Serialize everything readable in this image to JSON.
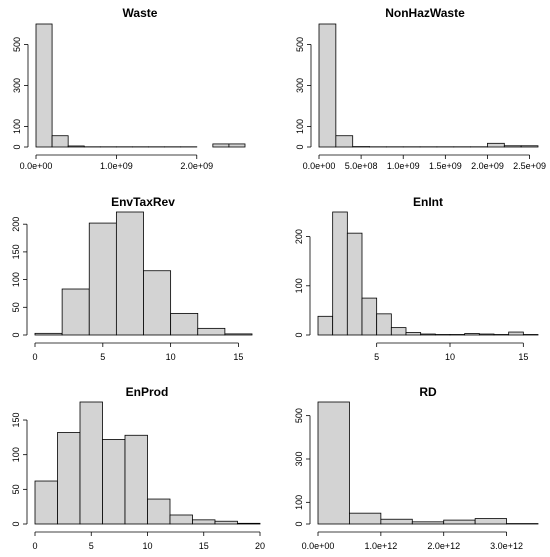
{
  "chart_data": [
    {
      "type": "bar",
      "title": "Waste",
      "bin_edges": [
        0,
        200000000,
        400000000,
        600000000,
        800000000,
        1000000000,
        1200000000,
        1400000000,
        1600000000,
        1800000000,
        2000000000,
        2200000000,
        2400000000,
        2600000000
      ],
      "counts": [
        600,
        55,
        5,
        1,
        1,
        1,
        1,
        1,
        1,
        1,
        0,
        15,
        15,
        2
      ],
      "xticks": [
        0,
        1000000000,
        2000000000
      ],
      "xtick_labels": [
        "0.0e+00",
        "1.0e+09",
        "2.0e+09"
      ],
      "yticks": [
        0,
        100,
        300,
        500
      ],
      "ytick_labels": [
        "0",
        "100",
        "300",
        "500"
      ],
      "ylim": [
        0,
        600
      ]
    },
    {
      "type": "bar",
      "title": "NonHazWaste",
      "bin_edges": [
        0,
        200000000,
        400000000,
        600000000,
        800000000,
        1000000000,
        1200000000,
        1400000000,
        1600000000,
        1800000000,
        2000000000,
        2200000000,
        2400000000,
        2600000000
      ],
      "counts": [
        600,
        55,
        2,
        1,
        1,
        1,
        1,
        1,
        1,
        1,
        18,
        6,
        6,
        1
      ],
      "xticks": [
        0,
        500000000,
        1000000000,
        1500000000,
        2000000000,
        2500000000
      ],
      "xtick_labels": [
        "0.0e+00",
        "5.0e+08",
        "1.0e+09",
        "1.5e+09",
        "2.0e+09",
        "2.5e+09"
      ],
      "yticks": [
        0,
        100,
        300,
        500
      ],
      "ytick_labels": [
        "0",
        "100",
        "300",
        "500"
      ],
      "ylim": [
        0,
        600
      ]
    },
    {
      "type": "bar",
      "title": "EnvTaxRev",
      "bin_edges": [
        0,
        2,
        4,
        6,
        8,
        10,
        12,
        14,
        16
      ],
      "counts": [
        3,
        83,
        202,
        222,
        116,
        39,
        12,
        2
      ],
      "xticks": [
        0,
        5,
        10,
        15
      ],
      "xtick_labels": [
        "0",
        "5",
        "10",
        "15"
      ],
      "yticks": [
        0,
        50,
        100,
        150,
        200
      ],
      "ytick_labels": [
        "0",
        "50",
        "100",
        "150",
        "200"
      ],
      "ylim": [
        0,
        222
      ]
    },
    {
      "type": "bar",
      "title": "EnInt",
      "bin_edges": [
        1,
        2,
        3,
        4,
        5,
        6,
        7,
        8,
        9,
        10,
        11,
        12,
        13,
        14,
        15,
        16
      ],
      "counts": [
        38,
        250,
        207,
        75,
        43,
        15,
        5,
        2,
        1,
        1,
        3,
        2,
        1,
        6,
        1
      ],
      "xticks": [
        5,
        10,
        15
      ],
      "xtick_labels": [
        "5",
        "10",
        "15"
      ],
      "yticks": [
        0,
        100,
        200
      ],
      "ytick_labels": [
        "0",
        "100",
        "200"
      ],
      "ylim": [
        0,
        250
      ]
    },
    {
      "type": "bar",
      "title": "EnProd",
      "bin_edges": [
        0,
        2,
        4,
        6,
        8,
        10,
        12,
        14,
        16,
        18,
        20
      ],
      "counts": [
        62,
        132,
        176,
        122,
        128,
        36,
        13,
        6,
        4,
        1
      ],
      "xticks": [
        0,
        5,
        10,
        15,
        20
      ],
      "xtick_labels": [
        "0",
        "5",
        "10",
        "15",
        "20"
      ],
      "yticks": [
        0,
        50,
        100,
        150
      ],
      "ytick_labels": [
        "0",
        "50",
        "100",
        "150"
      ],
      "ylim": [
        0,
        176
      ]
    },
    {
      "type": "bar",
      "title": "RD",
      "bin_edges": [
        0,
        500000000000,
        1000000000000,
        1500000000000,
        2000000000000,
        2500000000000,
        3000000000000,
        3500000000000
      ],
      "counts": [
        563,
        50,
        22,
        10,
        18,
        25,
        2
      ],
      "xticks": [
        0,
        1000000000000,
        2000000000000,
        3000000000000
      ],
      "xtick_labels": [
        "0.0e+00",
        "1.0e+12",
        "2.0e+12",
        "3.0e+12"
      ],
      "yticks": [
        0,
        100,
        300,
        500
      ],
      "ytick_labels": [
        "0",
        "100",
        "300",
        "500"
      ],
      "ylim": [
        0,
        563
      ]
    }
  ]
}
